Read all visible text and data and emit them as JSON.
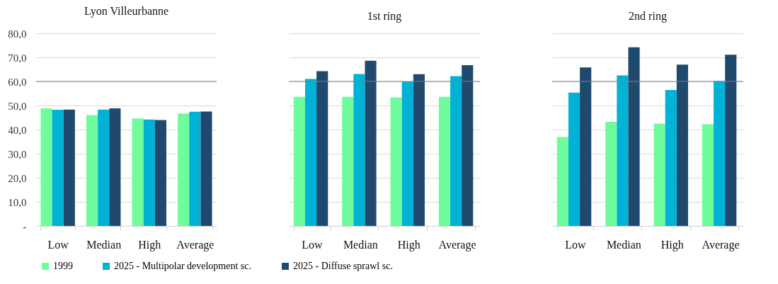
{
  "chart_data": [
    {
      "type": "bar",
      "title": "Lyon Villeurbanne",
      "categories": [
        "Low",
        "Median",
        "High",
        "Average"
      ],
      "series": [
        {
          "name": "1999",
          "color": "#6efc9c",
          "values": [
            48.8,
            46.0,
            44.6,
            46.7
          ]
        },
        {
          "name": "2025 - Multipolar development sc.",
          "color": "#00b2d6",
          "values": [
            48.2,
            48.3,
            44.2,
            47.4
          ]
        },
        {
          "name": "2025 - Diffuse sprawl sc.",
          "color": "#1f4a6e",
          "values": [
            48.3,
            48.8,
            44.0,
            47.5
          ]
        }
      ],
      "ylim": [
        0,
        80
      ],
      "yticks": [
        {
          "value": 0,
          "label": "-"
        },
        {
          "value": 10,
          "label": "10,0"
        },
        {
          "value": 20,
          "label": "20,0"
        },
        {
          "value": 30,
          "label": "30,0"
        },
        {
          "value": 40,
          "label": "40,0"
        },
        {
          "value": 50,
          "label": "50,0"
        },
        {
          "value": 60,
          "label": "60,0"
        },
        {
          "value": 70,
          "label": "70,0"
        },
        {
          "value": 80,
          "label": "80,0"
        }
      ],
      "ref_lines": [
        {
          "axis": "y",
          "value": 60,
          "color": "#808080"
        }
      ],
      "grid": "y",
      "legend": "bottom"
    },
    {
      "type": "bar",
      "title": "1st ring",
      "categories": [
        "Low",
        "Median",
        "High",
        "Average"
      ],
      "series": [
        {
          "name": "1999",
          "color": "#6efc9c",
          "values": [
            53.6,
            53.6,
            53.4,
            53.6
          ]
        },
        {
          "name": "2025 - Multipolar development sc.",
          "color": "#00b2d6",
          "values": [
            61.0,
            63.1,
            59.9,
            62.2
          ]
        },
        {
          "name": "2025 - Diffuse sprawl sc.",
          "color": "#1f4a6e",
          "values": [
            64.3,
            68.6,
            63.0,
            66.8
          ]
        }
      ],
      "ylim": [
        0,
        80
      ],
      "yticks": [
        {
          "value": 0,
          "label": "-"
        },
        {
          "value": 10,
          "label": "10,0"
        },
        {
          "value": 20,
          "label": "20,0"
        },
        {
          "value": 30,
          "label": "30,0"
        },
        {
          "value": 40,
          "label": "40,0"
        },
        {
          "value": 50,
          "label": "50,0"
        },
        {
          "value": 60,
          "label": "60,0"
        },
        {
          "value": 70,
          "label": "70,0"
        },
        {
          "value": 80,
          "label": "80,0"
        }
      ],
      "ref_lines": [
        {
          "axis": "y",
          "value": 60,
          "color": "#808080"
        }
      ],
      "grid": "y",
      "legend": "bottom",
      "tick_labels": "x"
    },
    {
      "type": "bar",
      "title": "2nd ring",
      "categories": [
        "Low",
        "Median",
        "High",
        "Average"
      ],
      "series": [
        {
          "name": "1999",
          "color": "#6efc9c",
          "values": [
            36.9,
            43.2,
            42.5,
            42.2
          ]
        },
        {
          "name": "2025 - Multipolar development sc.",
          "color": "#00b2d6",
          "values": [
            55.4,
            62.5,
            56.5,
            60.2
          ]
        },
        {
          "name": "2025 - Diffuse sprawl sc.",
          "color": "#1f4a6e",
          "values": [
            65.8,
            74.2,
            67.0,
            71.1
          ]
        }
      ],
      "ylim": [
        0,
        80
      ],
      "yticks": [
        {
          "value": 0,
          "label": "-"
        },
        {
          "value": 10,
          "label": "10,0"
        },
        {
          "value": 20,
          "label": "20,0"
        },
        {
          "value": 30,
          "label": "30,0"
        },
        {
          "value": 40,
          "label": "40,0"
        },
        {
          "value": 50,
          "label": "50,0"
        },
        {
          "value": 60,
          "label": "60,0"
        },
        {
          "value": 70,
          "label": "70,0"
        },
        {
          "value": 80,
          "label": "80,0"
        }
      ],
      "ref_lines": [
        {
          "axis": "y",
          "value": 60,
          "color": "#808080"
        }
      ],
      "grid": "y",
      "legend": "bottom",
      "tick_labels": "x"
    }
  ]
}
